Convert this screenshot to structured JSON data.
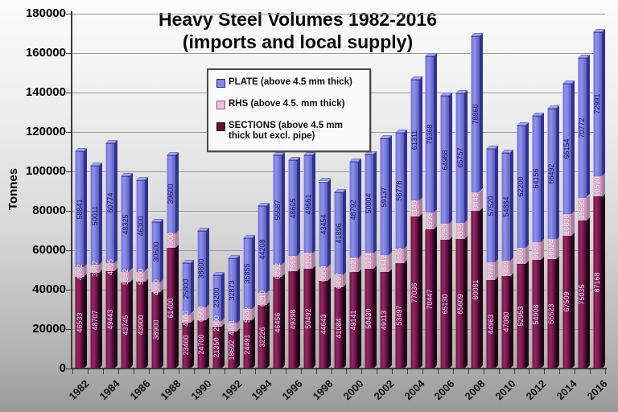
{
  "title": {
    "line1": "Heavy Steel Volumes 1982-2016",
    "line2": "(imports and local supply)"
  },
  "y_axis": {
    "label": "Tonnes",
    "min": 0,
    "max": 180000,
    "step": 20000,
    "tick_labels": [
      "0",
      "20000",
      "40000",
      "60000",
      "80000",
      "100000",
      "120000",
      "140000",
      "160000",
      "180000"
    ]
  },
  "x_axis": {
    "tick_labels": [
      "1982",
      "1984",
      "1986",
      "1988",
      "1990",
      "1992",
      "1994",
      "1996",
      "1998",
      "2000",
      "2002",
      "2004",
      "2006",
      "2008",
      "2010",
      "2012",
      "2014",
      "2016"
    ]
  },
  "legend": {
    "items": [
      {
        "label": "PLATE (above 4.5 mm thick)",
        "color": "#8585e2",
        "border": "#2a2a7a"
      },
      {
        "label": "RHS (above 4.5. mm thick)",
        "color": "#ecc2de",
        "border": "#8a5878"
      },
      {
        "label": "SECTIONS (above 4.5 mm thick but excl. pipe)",
        "color": "#5c1038",
        "border": "#2a0518"
      }
    ]
  },
  "chart_data": {
    "type": "bar",
    "stacked": true,
    "title": "Heavy Steel Volumes 1982-2016 (imports and local supply)",
    "xlabel": "",
    "ylabel": "Tonnes",
    "ylim": [
      0,
      180000
    ],
    "grid": true,
    "legend_position": "top-center-inside",
    "categories": [
      1982,
      1983,
      1984,
      1985,
      1986,
      1987,
      1988,
      1989,
      1990,
      1991,
      1992,
      1993,
      1994,
      1995,
      1996,
      1997,
      1998,
      1999,
      2000,
      2001,
      2002,
      2003,
      2004,
      2005,
      2006,
      2007,
      2008,
      2009,
      2010,
      2011,
      2012,
      2013,
      2014,
      2015,
      2016
    ],
    "series": [
      {
        "name": "SECTIONS (above 4.5 mm thick but excl. pipe)",
        "key": "sections",
        "values": [
          46533,
          48707,
          49443,
          43745,
          43900,
          38900,
          61400,
          23400,
          24700,
          21350,
          18692,
          24491,
          32226,
          46456,
          49398,
          50492,
          44643,
          41084,
          49141,
          50430,
          49113,
          53497,
          77036,
          70447,
          65130,
          65609,
          80081,
          44963,
          47080,
          52953,
          54908,
          55523,
          67509,
          75035,
          87168
        ],
        "color": "#7a1a4e",
        "label_color": "#e6d9f2"
      },
      {
        "name": "RHS (above 4.5. mm thick)",
        "key": "rhs",
        "values": [
          4782,
          3962,
          4205,
          5342,
          5200,
          4900,
          7300,
          4100,
          6500,
          2900,
          4441,
          5842,
          6210,
          6232,
          7665,
          8102,
          6804,
          6497,
          7021,
          8321,
          8342,
          7495,
          8149,
          8698,
          8253,
          8318,
          9449,
          8777,
          7448,
          8080,
          9181,
          10024,
          10838,
          11630,
          10520
        ],
        "color": "#ecc2de",
        "label_color": "#fcecf7"
      },
      {
        "name": "PLATE (above 4.5 mm thick)",
        "key": "plate",
        "values": [
          58841,
          50011,
          60774,
          48325,
          46300,
          30600,
          39600,
          25800,
          38800,
          23200,
          32873,
          35855,
          44208,
          55587,
          48605,
          49661,
          43454,
          41896,
          48792,
          50004,
          59137,
          58778,
          61311,
          79368,
          64988,
          65757,
          78860,
          57520,
          54884,
          62200,
          64156,
          66492,
          66154,
          70772,
          72991
        ],
        "color": "#8585e2",
        "label_color": "#141052"
      }
    ]
  }
}
